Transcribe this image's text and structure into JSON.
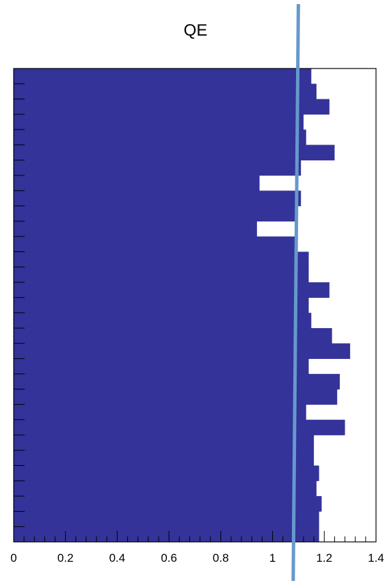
{
  "chart_data": {
    "type": "bar",
    "orientation": "horizontal",
    "title": "QE",
    "xlabel": "",
    "ylabel": "",
    "xlim": [
      0,
      1.4
    ],
    "x_ticks": [
      "0",
      "0.2",
      "0.4",
      "0.6",
      "0.8",
      "1",
      "1.2",
      "1.4"
    ],
    "grid": false,
    "values": [
      1.15,
      1.17,
      1.22,
      1.12,
      1.13,
      1.24,
      1.11,
      0.95,
      1.11,
      1.09,
      0.94,
      1.09,
      1.14,
      1.14,
      1.22,
      1.14,
      1.15,
      1.23,
      1.3,
      1.14,
      1.26,
      1.25,
      1.13,
      1.28,
      1.16,
      1.16,
      1.18,
      1.17,
      1.19,
      1.18,
      1.18
    ],
    "bar_color": "#333399",
    "reference_line": {
      "x_top": 1.1,
      "x_bottom": 1.08,
      "color": "#6699cc"
    }
  }
}
